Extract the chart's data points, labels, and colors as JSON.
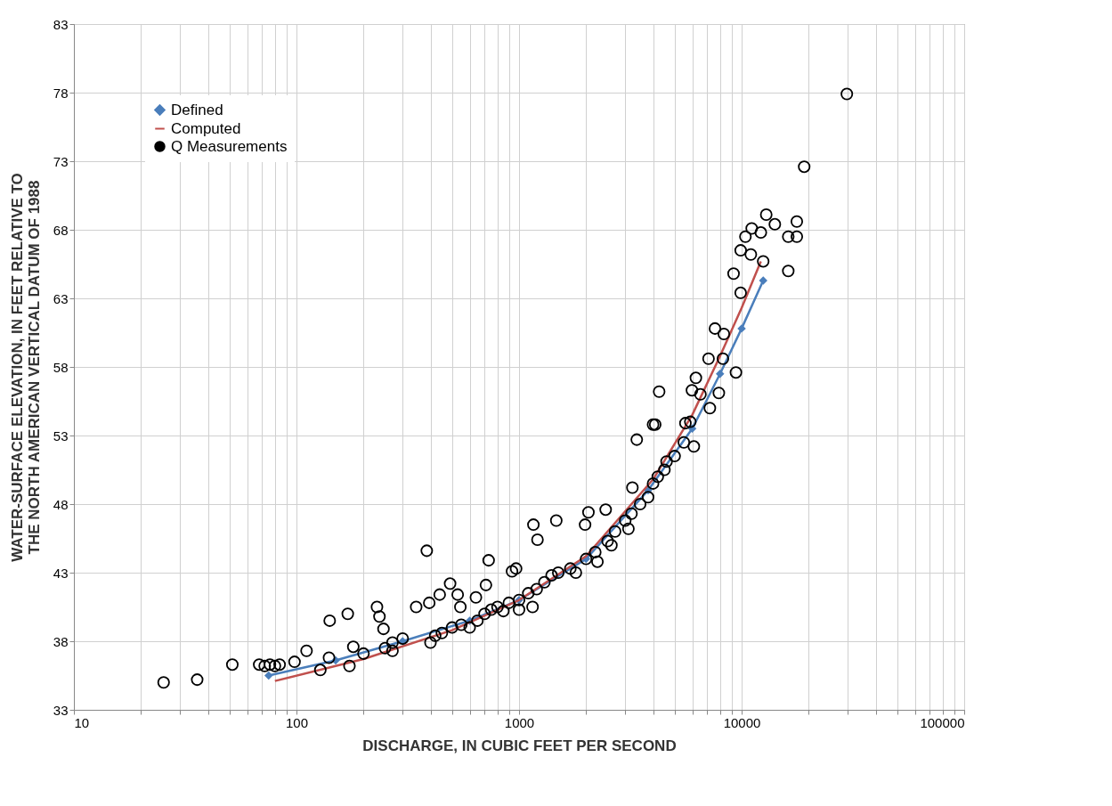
{
  "chart_data": {
    "type": "scatter",
    "xlabel": "DISCHARGE, IN CUBIC FEET PER SECOND",
    "ylabel": "WATER-SURFACE ELEVATION, IN FEET RELATIVE TO THE NORTH AMERICAN VERTICAL DATUM OF 1988",
    "log": "x",
    "xlim": [
      10,
      100000
    ],
    "xticks": [
      10,
      100,
      1000,
      10000,
      100000
    ],
    "ylim": [
      33,
      83
    ],
    "yticks": [
      33,
      38,
      43,
      48,
      53,
      58,
      63,
      68,
      73,
      78,
      83
    ],
    "grid": true,
    "legend": "top left",
    "series": [
      {
        "name": "Defined",
        "type": "line",
        "color": "#4a7ebb",
        "marker": "diamond",
        "x": [
          75,
          150,
          300,
          600,
          1000,
          2000,
          3800,
          6000,
          8000,
          10000,
          12500
        ],
        "values": [
          35.5,
          36.6,
          38.0,
          39.5,
          41.0,
          44.0,
          49.0,
          53.5,
          57.5,
          60.8,
          64.3
        ]
      },
      {
        "name": "Computed",
        "type": "line",
        "color": "#c0504d",
        "marker": "none",
        "x": [
          80,
          200,
          500,
          1000,
          2000,
          4000,
          6000,
          8000,
          10000,
          12200
        ],
        "values": [
          35.1,
          36.7,
          38.8,
          41.0,
          44.2,
          49.8,
          54.5,
          58.8,
          62.3,
          65.7
        ]
      },
      {
        "name": "Q Measurements",
        "color": "#000000",
        "marker": "circle",
        "x": [
          25.3,
          35.8,
          51.5,
          68,
          72,
          76,
          80,
          84,
          98,
          111,
          128,
          140,
          141,
          170,
          173,
          180,
          230,
          236,
          246,
          270,
          345,
          385,
          395,
          440,
          490,
          530,
          545,
          640,
          710,
          730,
          930,
          970,
          1160,
          1210,
          1470,
          1980,
          2050,
          2250,
          2450,
          3230,
          3380,
          4000,
          4260,
          4600,
          5880,
          6100,
          6530,
          7590,
          8320,
          7100,
          8240,
          9430,
          6230,
          5980,
          7900,
          7200,
          4090,
          5590,
          29700,
          19100,
          12900,
          14100,
          17700,
          11100,
          10400,
          12200,
          16200,
          17700,
          9900,
          11000,
          12500,
          9200,
          16200,
          9900,
          300,
          400,
          420,
          450,
          500,
          550,
          600,
          650,
          700,
          750,
          800,
          850,
          900,
          1000,
          1100,
          1200,
          1300,
          1400,
          1500,
          1700,
          1800,
          2000,
          2200,
          2500,
          2700,
          3000,
          3200,
          3500,
          3800,
          4000,
          4200,
          4500,
          5000,
          5500,
          2600,
          3100,
          1000,
          1150,
          250,
          270,
          200
        ],
        "values": [
          35.0,
          35.2,
          36.3,
          36.3,
          36.2,
          36.3,
          36.2,
          36.3,
          36.5,
          37.3,
          35.9,
          36.8,
          39.5,
          40.0,
          36.2,
          37.6,
          40.5,
          39.8,
          38.9,
          37.9,
          40.5,
          44.6,
          40.8,
          41.4,
          42.2,
          41.4,
          40.5,
          41.2,
          42.1,
          43.9,
          43.1,
          43.3,
          46.5,
          45.4,
          46.8,
          46.5,
          47.4,
          43.8,
          47.6,
          49.2,
          52.7,
          53.8,
          56.2,
          51.1,
          54.0,
          52.2,
          56.0,
          60.8,
          60.4,
          58.6,
          58.6,
          57.6,
          57.2,
          56.3,
          56.1,
          55.0,
          53.8,
          53.9,
          77.9,
          72.6,
          69.1,
          68.4,
          68.6,
          68.1,
          67.5,
          67.8,
          67.5,
          67.5,
          66.5,
          66.2,
          65.7,
          64.8,
          65.0,
          63.4,
          38.2,
          37.9,
          38.4,
          38.6,
          39.0,
          39.2,
          39.0,
          39.5,
          40.0,
          40.3,
          40.5,
          40.2,
          40.8,
          41.0,
          41.5,
          41.8,
          42.3,
          42.8,
          43.0,
          43.3,
          43.0,
          44.0,
          44.5,
          45.3,
          46.0,
          46.8,
          47.3,
          48.0,
          48.5,
          49.5,
          50.0,
          50.5,
          51.5,
          52.5,
          45.0,
          46.2,
          40.3,
          40.5,
          37.5,
          37.3,
          37.1
        ]
      }
    ]
  }
}
